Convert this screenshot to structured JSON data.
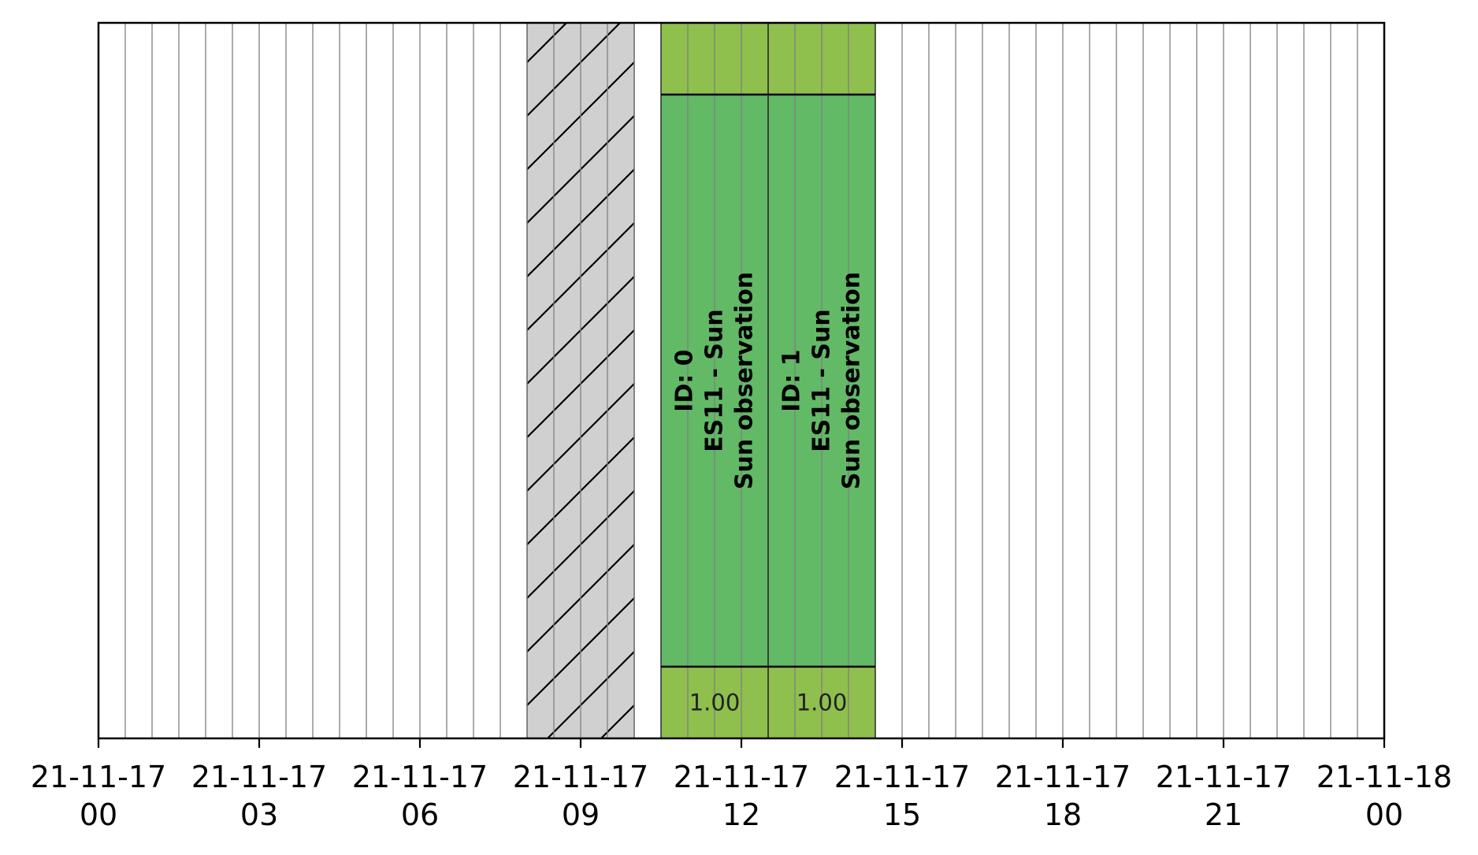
{
  "chart_data": {
    "type": "timeline",
    "title": "",
    "xlabel": "",
    "ylabel": "",
    "x_range": [
      "21-11-17 00:00",
      "21-11-18 00:00"
    ],
    "x_unit": "hours",
    "ticks": [
      {
        "hour": 0,
        "line1": "21-11-17",
        "line2": "00"
      },
      {
        "hour": 3,
        "line1": "21-11-17",
        "line2": "03"
      },
      {
        "hour": 6,
        "line1": "21-11-17",
        "line2": "06"
      },
      {
        "hour": 9,
        "line1": "21-11-17",
        "line2": "09"
      },
      {
        "hour": 12,
        "line1": "21-11-17",
        "line2": "12"
      },
      {
        "hour": 15,
        "line1": "21-11-17",
        "line2": "15"
      },
      {
        "hour": 18,
        "line1": "21-11-17",
        "line2": "18"
      },
      {
        "hour": 21,
        "line1": "21-11-17",
        "line2": "21"
      },
      {
        "hour": 24,
        "line1": "21-11-18",
        "line2": "00"
      }
    ],
    "grid": {
      "vertical": true,
      "interval_hours": 0.5,
      "color": "#808080"
    },
    "unavailable_periods": [
      {
        "start_hour": 8.0,
        "end_hour": 10.0,
        "fill": "#d0d0d0",
        "pattern": "diagonal-hatch"
      }
    ],
    "observations": [
      {
        "id": 0,
        "start_hour": 10.5,
        "end_hour": 12.5,
        "lines": [
          "ID: 0",
          "ES11 - Sun",
          "Sun observation"
        ],
        "score": "1.00",
        "fill": "#62b966",
        "band_fill": "#8fbf4d"
      },
      {
        "id": 1,
        "start_hour": 12.5,
        "end_hour": 14.5,
        "lines": [
          "ID: 1",
          "ES11 - Sun",
          "Sun observation"
        ],
        "score": "1.00",
        "fill": "#62b966",
        "band_fill": "#8fbf4d"
      }
    ]
  }
}
